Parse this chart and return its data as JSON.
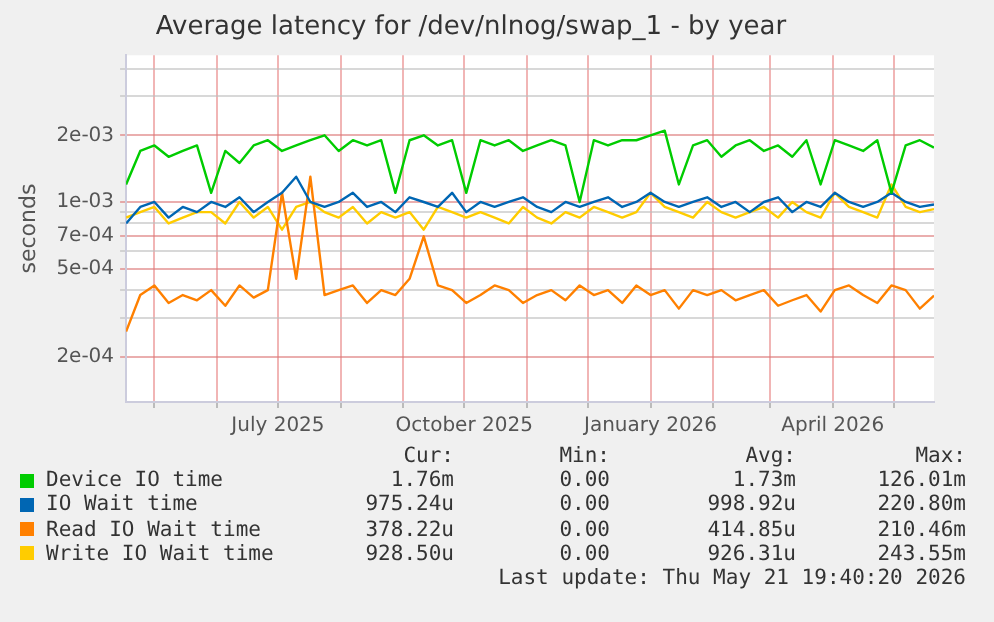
{
  "chart_data": {
    "type": "line",
    "title": "Average latency for /dev/nlnog/swap_1 - by year",
    "ylabel": "seconds",
    "log": "y",
    "grid": true,
    "legend": "bottom",
    "marker": "none",
    "line_style": "solid",
    "xlim": [
      "2025-04-17",
      "2026-05-21"
    ],
    "xticks": [
      {
        "value": "2025-05-01",
        "label": null
      },
      {
        "value": "2025-06-01",
        "label": null
      },
      {
        "value": "2025-07-01",
        "label": "July 2025"
      },
      {
        "value": "2025-08-01",
        "label": null
      },
      {
        "value": "2025-09-01",
        "label": null
      },
      {
        "value": "2025-10-01",
        "label": "October 2025"
      },
      {
        "value": "2025-11-01",
        "label": null
      },
      {
        "value": "2025-12-01",
        "label": null
      },
      {
        "value": "2026-01-01",
        "label": "January 2026"
      },
      {
        "value": "2026-02-01",
        "label": null
      },
      {
        "value": "2026-03-01",
        "label": null
      },
      {
        "value": "2026-04-01",
        "label": "April 2026"
      },
      {
        "value": "2026-05-01",
        "label": null
      }
    ],
    "ylim": [
      0.000125,
      0.0046
    ],
    "yticks": [
      {
        "value": 0.0002,
        "label": "2e-04"
      },
      {
        "value": 0.0003,
        "label": null
      },
      {
        "value": 0.0004,
        "label": null
      },
      {
        "value": 0.0005,
        "label": "5e-04"
      },
      {
        "value": 0.0006,
        "label": null
      },
      {
        "value": 0.0007,
        "label": "7e-04"
      },
      {
        "value": 0.0008,
        "label": null
      },
      {
        "value": 0.0009,
        "label": null
      },
      {
        "value": 0.001,
        "label": "1e-03"
      },
      {
        "value": 0.002,
        "label": "2e-03"
      },
      {
        "value": 0.003,
        "label": null
      },
      {
        "value": 0.004,
        "label": null
      }
    ],
    "x": [
      "2025-04-17",
      "2025-04-24",
      "2025-05-01",
      "2025-05-08",
      "2025-05-15",
      "2025-05-22",
      "2025-05-29",
      "2025-06-05",
      "2025-06-12",
      "2025-06-19",
      "2025-06-26",
      "2025-07-03",
      "2025-07-10",
      "2025-07-17",
      "2025-07-24",
      "2025-07-31",
      "2025-08-07",
      "2025-08-14",
      "2025-08-21",
      "2025-08-28",
      "2025-09-04",
      "2025-09-11",
      "2025-09-18",
      "2025-09-25",
      "2025-10-02",
      "2025-10-09",
      "2025-10-16",
      "2025-10-23",
      "2025-10-30",
      "2025-11-06",
      "2025-11-13",
      "2025-11-20",
      "2025-11-27",
      "2025-12-04",
      "2025-12-11",
      "2025-12-18",
      "2025-12-25",
      "2026-01-01",
      "2026-01-08",
      "2026-01-15",
      "2026-01-22",
      "2026-01-29",
      "2026-02-05",
      "2026-02-12",
      "2026-02-19",
      "2026-02-26",
      "2026-03-05",
      "2026-03-12",
      "2026-03-19",
      "2026-03-26",
      "2026-04-02",
      "2026-04-09",
      "2026-04-16",
      "2026-04-23",
      "2026-04-30",
      "2026-05-07",
      "2026-05-14",
      "2026-05-21"
    ],
    "series": [
      {
        "name": "Device IO time",
        "color": "#00cc00",
        "values": [
          0.0012,
          0.0017,
          0.0018,
          0.0016,
          0.0017,
          0.0018,
          0.0011,
          0.0017,
          0.0015,
          0.0018,
          0.0019,
          0.0017,
          0.0018,
          0.0019,
          0.002,
          0.0017,
          0.0019,
          0.0018,
          0.0019,
          0.0011,
          0.0019,
          0.002,
          0.0018,
          0.0019,
          0.0011,
          0.0019,
          0.0018,
          0.0019,
          0.0017,
          0.0018,
          0.0019,
          0.0018,
          0.001,
          0.0019,
          0.0018,
          0.0019,
          0.0019,
          0.002,
          0.0021,
          0.0012,
          0.0018,
          0.0019,
          0.0016,
          0.0018,
          0.0019,
          0.0017,
          0.0018,
          0.0016,
          0.0019,
          0.0012,
          0.0019,
          0.0018,
          0.0017,
          0.0019,
          0.0011,
          0.0018,
          0.0019,
          0.00176
        ]
      },
      {
        "name": "IO Wait time",
        "color": "#0066b3",
        "values": [
          0.0008,
          0.00095,
          0.001,
          0.00085,
          0.00095,
          0.0009,
          0.001,
          0.00095,
          0.00105,
          0.0009,
          0.001,
          0.0011,
          0.0013,
          0.001,
          0.00095,
          0.001,
          0.0011,
          0.00095,
          0.001,
          0.0009,
          0.00105,
          0.001,
          0.00095,
          0.0011,
          0.0009,
          0.001,
          0.00095,
          0.001,
          0.00105,
          0.00095,
          0.0009,
          0.001,
          0.00095,
          0.001,
          0.00105,
          0.00095,
          0.001,
          0.0011,
          0.001,
          0.00095,
          0.001,
          0.00105,
          0.00095,
          0.001,
          0.0009,
          0.001,
          0.00105,
          0.0009,
          0.001,
          0.00095,
          0.0011,
          0.001,
          0.00095,
          0.001,
          0.0011,
          0.001,
          0.00095,
          0.000975
        ]
      },
      {
        "name": "Read IO Wait time",
        "color": "#ff8000",
        "values": [
          0.00026,
          0.00038,
          0.00042,
          0.00035,
          0.00038,
          0.00036,
          0.0004,
          0.00034,
          0.00042,
          0.00037,
          0.0004,
          0.0011,
          0.00045,
          0.0013,
          0.00038,
          0.0004,
          0.00042,
          0.00035,
          0.0004,
          0.00038,
          0.00045,
          0.0007,
          0.00042,
          0.0004,
          0.00035,
          0.00038,
          0.00042,
          0.0004,
          0.00035,
          0.00038,
          0.0004,
          0.00036,
          0.00042,
          0.00038,
          0.0004,
          0.00035,
          0.00042,
          0.00038,
          0.0004,
          0.00033,
          0.0004,
          0.00038,
          0.0004,
          0.00036,
          0.00038,
          0.0004,
          0.00034,
          0.00036,
          0.00038,
          0.00032,
          0.0004,
          0.00042,
          0.00038,
          0.00035,
          0.00042,
          0.0004,
          0.00033,
          0.000378
        ]
      },
      {
        "name": "Write IO Wait time",
        "color": "#ffcc00",
        "values": [
          0.00085,
          0.0009,
          0.00095,
          0.0008,
          0.00085,
          0.0009,
          0.0009,
          0.0008,
          0.001,
          0.00085,
          0.00095,
          0.00075,
          0.00095,
          0.001,
          0.0009,
          0.00085,
          0.00095,
          0.0008,
          0.0009,
          0.00085,
          0.0009,
          0.00075,
          0.00095,
          0.0009,
          0.00085,
          0.0009,
          0.00085,
          0.0008,
          0.00095,
          0.00085,
          0.0008,
          0.0009,
          0.00085,
          0.00095,
          0.0009,
          0.00085,
          0.0009,
          0.0011,
          0.00095,
          0.0009,
          0.00085,
          0.001,
          0.0009,
          0.00085,
          0.0009,
          0.00095,
          0.00085,
          0.001,
          0.0009,
          0.00085,
          0.0011,
          0.00095,
          0.0009,
          0.00085,
          0.0012,
          0.00095,
          0.0009,
          0.0009285
        ]
      }
    ],
    "annotations": [
      "Cur:",
      "Min:",
      "Avg:",
      "Max:",
      "1.76m",
      "0.00",
      "1.73m",
      "126.01m",
      "975.24u",
      "0.00",
      "998.92u",
      "220.80m",
      "378.22u",
      "0.00",
      "414.85u",
      "210.46m",
      "928.50u",
      "0.00",
      "926.31u",
      "243.55m",
      "Last update: Thu May 21 19:40:20 2026"
    ]
  }
}
